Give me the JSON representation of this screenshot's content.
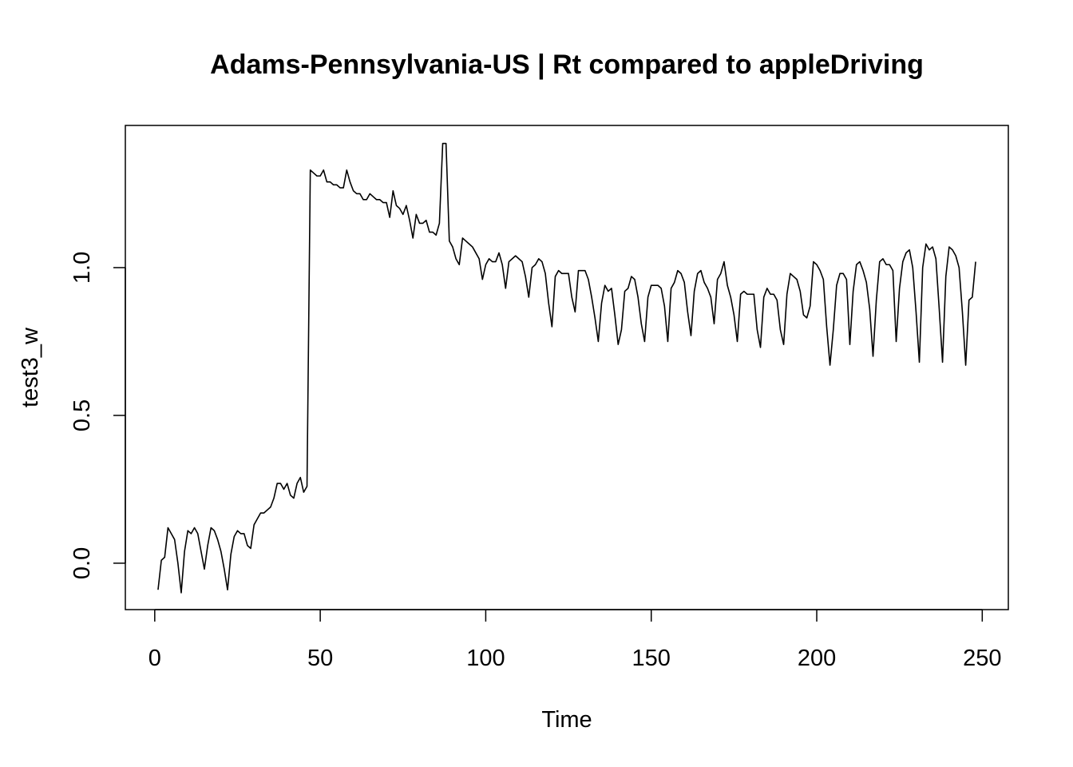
{
  "chart_data": {
    "type": "line",
    "title": "Adams-Pennsylvania-US | Rt compared to appleDriving",
    "x_label": "Time",
    "y_label": "test3_w",
    "color": "#000000",
    "x": [
      1,
      2,
      3,
      4,
      5,
      6,
      7,
      8,
      9,
      10,
      11,
      12,
      13,
      14,
      15,
      16,
      17,
      18,
      19,
      20,
      21,
      22,
      23,
      24,
      25,
      26,
      27,
      28,
      29,
      30,
      31,
      32,
      33,
      34,
      35,
      36,
      37,
      38,
      39,
      40,
      41,
      42,
      43,
      44,
      45,
      46,
      47,
      48,
      49,
      50,
      51,
      52,
      53,
      54,
      55,
      56,
      57,
      58,
      59,
      60,
      61,
      62,
      63,
      64,
      65,
      66,
      67,
      68,
      69,
      70,
      71,
      72,
      73,
      74,
      75,
      76,
      77,
      78,
      79,
      80,
      81,
      82,
      83,
      84,
      85,
      86,
      87,
      88,
      89,
      90,
      91,
      92,
      93,
      94,
      95,
      96,
      97,
      98,
      99,
      100,
      101,
      102,
      103,
      104,
      105,
      106,
      107,
      108,
      109,
      110,
      111,
      112,
      113,
      114,
      115,
      116,
      117,
      118,
      119,
      120,
      121,
      122,
      123,
      124,
      125,
      126,
      127,
      128,
      129,
      130,
      131,
      132,
      133,
      134,
      135,
      136,
      137,
      138,
      139,
      140,
      141,
      142,
      143,
      144,
      145,
      146,
      147,
      148,
      149,
      150,
      151,
      152,
      153,
      154,
      155,
      156,
      157,
      158,
      159,
      160,
      161,
      162,
      163,
      164,
      165,
      166,
      167,
      168,
      169,
      170,
      171,
      172,
      173,
      174,
      175,
      176,
      177,
      178,
      179,
      180,
      181,
      182,
      183,
      184,
      185,
      186,
      187,
      188,
      189,
      190,
      191,
      192,
      193,
      194,
      195,
      196,
      197,
      198,
      199,
      200,
      201,
      202,
      203,
      204,
      205,
      206,
      207,
      208,
      209,
      210,
      211,
      212,
      213,
      214,
      215,
      216,
      217,
      218,
      219,
      220,
      221,
      222,
      223,
      224,
      225,
      226,
      227,
      228,
      229,
      230,
      231,
      232,
      233,
      234,
      235,
      236,
      237,
      238,
      239,
      240,
      241,
      242,
      243,
      244,
      245,
      246,
      247,
      248
    ],
    "values": [
      -0.09,
      0.01,
      0.02,
      0.12,
      0.1,
      0.08,
      0.0,
      -0.1,
      0.04,
      0.11,
      0.1,
      0.12,
      0.1,
      0.04,
      -0.02,
      0.06,
      0.12,
      0.11,
      0.08,
      0.04,
      -0.02,
      -0.09,
      0.03,
      0.09,
      0.11,
      0.1,
      0.1,
      0.06,
      0.05,
      0.13,
      0.15,
      0.17,
      0.17,
      0.18,
      0.19,
      0.22,
      0.27,
      0.27,
      0.25,
      0.27,
      0.23,
      0.22,
      0.27,
      0.29,
      0.24,
      0.26,
      1.33,
      1.32,
      1.31,
      1.31,
      1.33,
      1.29,
      1.29,
      1.28,
      1.28,
      1.27,
      1.27,
      1.33,
      1.29,
      1.26,
      1.25,
      1.25,
      1.23,
      1.23,
      1.25,
      1.24,
      1.23,
      1.23,
      1.22,
      1.22,
      1.17,
      1.26,
      1.21,
      1.2,
      1.18,
      1.21,
      1.16,
      1.1,
      1.18,
      1.15,
      1.15,
      1.16,
      1.12,
      1.12,
      1.11,
      1.15,
      1.42,
      1.42,
      1.09,
      1.07,
      1.03,
      1.01,
      1.1,
      1.09,
      1.08,
      1.07,
      1.05,
      1.03,
      0.96,
      1.01,
      1.03,
      1.02,
      1.02,
      1.05,
      1.01,
      0.93,
      1.02,
      1.03,
      1.04,
      1.03,
      1.02,
      0.97,
      0.9,
      1.0,
      1.01,
      1.03,
      1.02,
      0.98,
      0.88,
      0.8,
      0.97,
      0.99,
      0.98,
      0.98,
      0.98,
      0.9,
      0.85,
      0.99,
      0.99,
      0.99,
      0.96,
      0.9,
      0.83,
      0.75,
      0.88,
      0.94,
      0.92,
      0.93,
      0.84,
      0.74,
      0.79,
      0.92,
      0.93,
      0.97,
      0.96,
      0.9,
      0.81,
      0.75,
      0.9,
      0.94,
      0.94,
      0.94,
      0.93,
      0.87,
      0.75,
      0.93,
      0.95,
      0.99,
      0.98,
      0.95,
      0.85,
      0.77,
      0.92,
      0.98,
      0.99,
      0.95,
      0.93,
      0.9,
      0.81,
      0.96,
      0.98,
      1.02,
      0.94,
      0.9,
      0.84,
      0.75,
      0.91,
      0.92,
      0.91,
      0.91,
      0.91,
      0.79,
      0.73,
      0.9,
      0.93,
      0.91,
      0.91,
      0.89,
      0.79,
      0.74,
      0.91,
      0.98,
      0.97,
      0.96,
      0.92,
      0.84,
      0.83,
      0.87,
      1.02,
      1.01,
      0.99,
      0.96,
      0.8,
      0.67,
      0.79,
      0.94,
      0.98,
      0.98,
      0.96,
      0.74,
      0.92,
      1.01,
      1.02,
      0.99,
      0.95,
      0.86,
      0.7,
      0.89,
      1.02,
      1.03,
      1.01,
      1.01,
      0.99,
      0.75,
      0.93,
      1.02,
      1.05,
      1.06,
      1.0,
      0.85,
      0.68,
      1.0,
      1.08,
      1.06,
      1.07,
      1.03,
      0.86,
      0.68,
      0.97,
      1.07,
      1.06,
      1.04,
      1.0,
      0.85,
      0.67,
      0.89,
      0.9,
      1.02
    ],
    "xlim": [
      -8.88,
      257.88
    ],
    "ylim": [
      -0.157,
      1.481
    ],
    "xticks": [
      0,
      50,
      100,
      150,
      200,
      250
    ],
    "yticks": [
      {
        "value": 0,
        "label": "0.0"
      },
      0.5,
      {
        "value": 1,
        "label": "1.0"
      }
    ]
  }
}
